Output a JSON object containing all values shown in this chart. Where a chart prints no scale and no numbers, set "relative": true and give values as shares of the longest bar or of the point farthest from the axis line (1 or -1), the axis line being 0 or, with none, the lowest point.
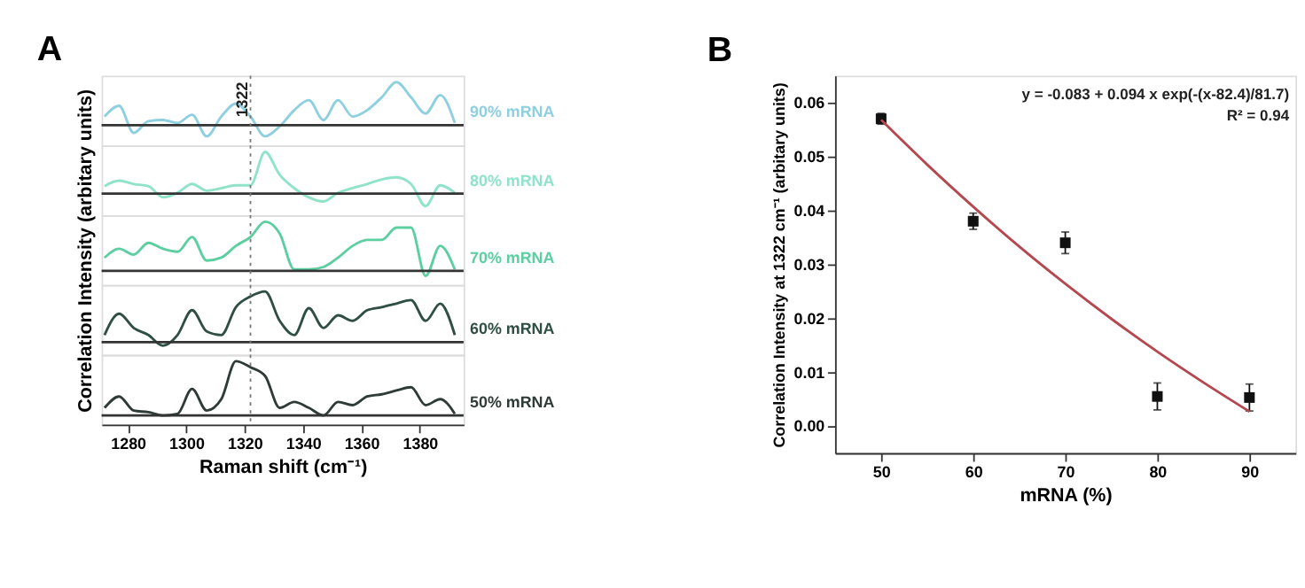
{
  "chart_data": [
    {
      "type": "line",
      "title": "A",
      "relative": true,
      "xlim": [
        1271,
        1395
      ],
      "tick_labels": false,
      "line_style": "solid",
      "x": [
        1272,
        1277,
        1282,
        1287,
        1292,
        1297,
        1302,
        1307,
        1312,
        1317,
        1322,
        1327,
        1332,
        1337,
        1342,
        1347,
        1352,
        1357,
        1362,
        1367,
        1372,
        1377,
        1382,
        1387,
        1392
      ],
      "series": [
        {
          "name": "90% mRNA",
          "color": "#8ecfe0",
          "values": [
            0.2,
            0.45,
            -0.18,
            0.09,
            0.12,
            0.05,
            0.24,
            -0.26,
            0.2,
            0.5,
            0.2,
            -0.26,
            -0.03,
            0.35,
            0.58,
            0.12,
            0.58,
            0.2,
            0.35,
            0.65,
            1,
            0.65,
            0.27,
            0.7,
            0.05
          ]
        }
      ],
      "ref_lines": [
        {
          "axis": "x",
          "value": 1322,
          "label": "1322",
          "line_style": "dotted"
        }
      ]
    },
    {
      "type": "line",
      "relative": true,
      "xlim": [
        1271,
        1395
      ],
      "tick_labels": false,
      "line_style": "solid",
      "x": [
        1272,
        1277,
        1282,
        1287,
        1292,
        1297,
        1302,
        1307,
        1312,
        1317,
        1322,
        1327,
        1332,
        1337,
        1342,
        1347,
        1352,
        1357,
        1362,
        1367,
        1372,
        1377,
        1382,
        1387,
        1392
      ],
      "series": [
        {
          "name": "80% mRNA",
          "color": "#8fe3c8",
          "values": [
            0.18,
            0.31,
            0.23,
            0.18,
            -0.09,
            0.02,
            0.23,
            0.07,
            0.13,
            0.2,
            0.2,
            1,
            0.45,
            0.13,
            -0.09,
            -0.19,
            0.02,
            0.13,
            0.23,
            0.34,
            0.39,
            0.23,
            -0.3,
            0.2,
            0.02
          ]
        }
      ],
      "ref_lines": [
        {
          "axis": "x",
          "value": 1322,
          "label": null,
          "line_style": "dotted"
        }
      ]
    },
    {
      "type": "line",
      "relative": true,
      "ylabel": "Correlation Intensity (arbitary units)",
      "xlim": [
        1271,
        1395
      ],
      "tick_labels": false,
      "line_style": "solid",
      "x": [
        1272,
        1277,
        1282,
        1287,
        1292,
        1297,
        1302,
        1307,
        1312,
        1317,
        1322,
        1327,
        1332,
        1337,
        1342,
        1347,
        1352,
        1357,
        1362,
        1367,
        1372,
        1377,
        1382,
        1387,
        1392
      ],
      "series": [
        {
          "name": "70% mRNA",
          "color": "#5ccfa0",
          "values": [
            0.27,
            0.45,
            0.33,
            0.57,
            0.45,
            0.39,
            0.69,
            0.21,
            0.27,
            0.51,
            0.69,
            1,
            0.76,
            0.03,
            0.03,
            0.08,
            0.27,
            0.51,
            0.63,
            0.63,
            0.88,
            0.88,
            -0.1,
            0.51,
            0.03
          ]
        }
      ],
      "ref_lines": [
        {
          "axis": "x",
          "value": 1322,
          "label": null,
          "line_style": "dotted"
        }
      ]
    },
    {
      "type": "line",
      "relative": true,
      "xlim": [
        1271,
        1395
      ],
      "tick_labels": false,
      "line_style": "solid",
      "x": [
        1272,
        1277,
        1282,
        1287,
        1292,
        1297,
        1302,
        1307,
        1312,
        1317,
        1322,
        1327,
        1332,
        1337,
        1342,
        1347,
        1352,
        1357,
        1362,
        1367,
        1372,
        1377,
        1382,
        1387,
        1392
      ],
      "series": [
        {
          "name": "60% mRNA",
          "color": "#2f4f44",
          "values": [
            0.14,
            0.56,
            0.28,
            0.14,
            -0.07,
            0.14,
            0.63,
            0.21,
            0.14,
            0.69,
            0.9,
            1,
            0.42,
            0.14,
            0.67,
            0.28,
            0.53,
            0.42,
            0.63,
            0.69,
            0.76,
            0.83,
            0.42,
            0.76,
            0.14
          ]
        }
      ],
      "ref_lines": [
        {
          "axis": "x",
          "value": 1322,
          "label": null,
          "line_style": "dotted"
        }
      ]
    },
    {
      "type": "line",
      "relative": true,
      "xlabel": "Raman shift (cm⁻¹)",
      "xlim": [
        1271,
        1395
      ],
      "xticks": [
        1280,
        1300,
        1320,
        1340,
        1360,
        1380
      ],
      "tick_labels": "x",
      "line_style": "solid",
      "x": [
        1272,
        1277,
        1282,
        1287,
        1292,
        1297,
        1302,
        1307,
        1312,
        1317,
        1322,
        1327,
        1332,
        1337,
        1342,
        1347,
        1352,
        1357,
        1362,
        1367,
        1372,
        1377,
        1382,
        1387,
        1392
      ],
      "series": [
        {
          "name": "50% mRNA",
          "color": "#2e3b36",
          "values": [
            0.14,
            0.35,
            0.09,
            0.06,
            0,
            0.03,
            0.49,
            0.09,
            0.3,
            1,
            0.89,
            0.73,
            0.14,
            0.25,
            0.14,
            0,
            0.25,
            0.19,
            0.35,
            0.39,
            0.46,
            0.52,
            0.19,
            0.3,
            0.03
          ]
        }
      ],
      "ref_lines": [
        {
          "axis": "x",
          "value": 1322,
          "label": null,
          "line_style": "dotted"
        }
      ]
    },
    {
      "type": "scatter",
      "title": "B",
      "xlabel": "mRNA (%)",
      "ylabel": "Correlation Intensity at 1322 cm⁻¹ (arbitary units)",
      "xlim": [
        45,
        95
      ],
      "ylim": [
        -0.005,
        0.065
      ],
      "xticks": [
        50,
        60,
        70,
        80,
        90
      ],
      "yticks": [
        {
          "value": 0,
          "label": "0.00"
        },
        {
          "value": 0.01,
          "label": "0.01"
        },
        {
          "value": 0.02,
          "label": "0.02"
        },
        {
          "value": 0.03,
          "label": "0.03"
        },
        {
          "value": 0.04,
          "label": "0.04"
        },
        {
          "value": 0.05,
          "label": "0.05"
        },
        {
          "value": 0.06,
          "label": "0.06"
        }
      ],
      "x": [
        50,
        60,
        70,
        80,
        90
      ],
      "series": [
        {
          "color": "#111111",
          "marker": "square",
          "values": [
            0.057,
            0.038,
            0.034,
            0.0055,
            0.0053
          ],
          "errors": [
            0.001,
            0.0015,
            0.002,
            0.0025,
            0.0025
          ]
        },
        {
          "type": "line",
          "color": "#b5474f",
          "x": [
            50,
            55,
            60,
            65,
            70,
            75,
            80,
            85,
            90
          ],
          "values": [
            0.0568,
            0.0485,
            0.0407,
            0.0333,
            0.0264,
            0.0199,
            0.0138,
            0.0081,
            0.0027
          ]
        }
      ],
      "annotations": [
        "y = -0.083 + 0.094 x exp(-(x-82.4)/81.7)",
        "R² = 0.94"
      ]
    }
  ]
}
